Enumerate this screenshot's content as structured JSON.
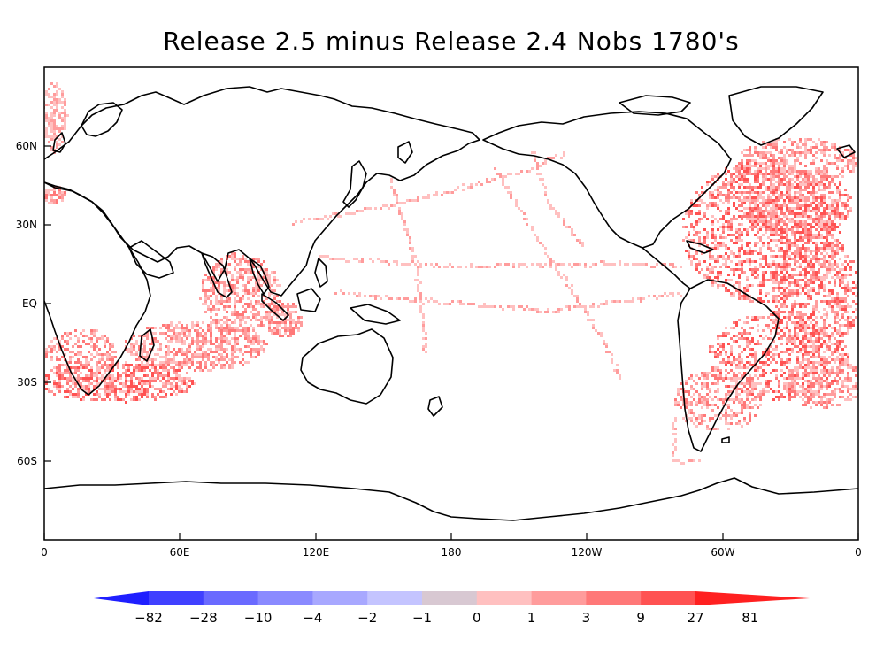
{
  "title": "Release 2.5 minus Release 2.4  Nobs 1780's",
  "axes": {
    "x_ticks": [
      "0",
      "60E",
      "120E",
      "180",
      "120W",
      "60W",
      "0"
    ],
    "y_ticks": [
      "60N",
      "30N",
      "EQ",
      "30S",
      "60S"
    ]
  },
  "colorbar": {
    "labels": [
      "−82",
      "−28",
      "−10",
      "−4",
      "−2",
      "−1",
      "0",
      "1",
      "3",
      "9",
      "27",
      "81"
    ],
    "colors": [
      "#1f1fff",
      "#4040ff",
      "#6a6aff",
      "#8a8aff",
      "#a8a8ff",
      "#c4c4ff",
      "#d8c8d2",
      "#ffc0c0",
      "#ff9c9c",
      "#ff7878",
      "#ff5252",
      "#ff2020"
    ]
  },
  "colors": {
    "ocean_obs": "#ff6a6a",
    "coast": "#000000"
  }
}
